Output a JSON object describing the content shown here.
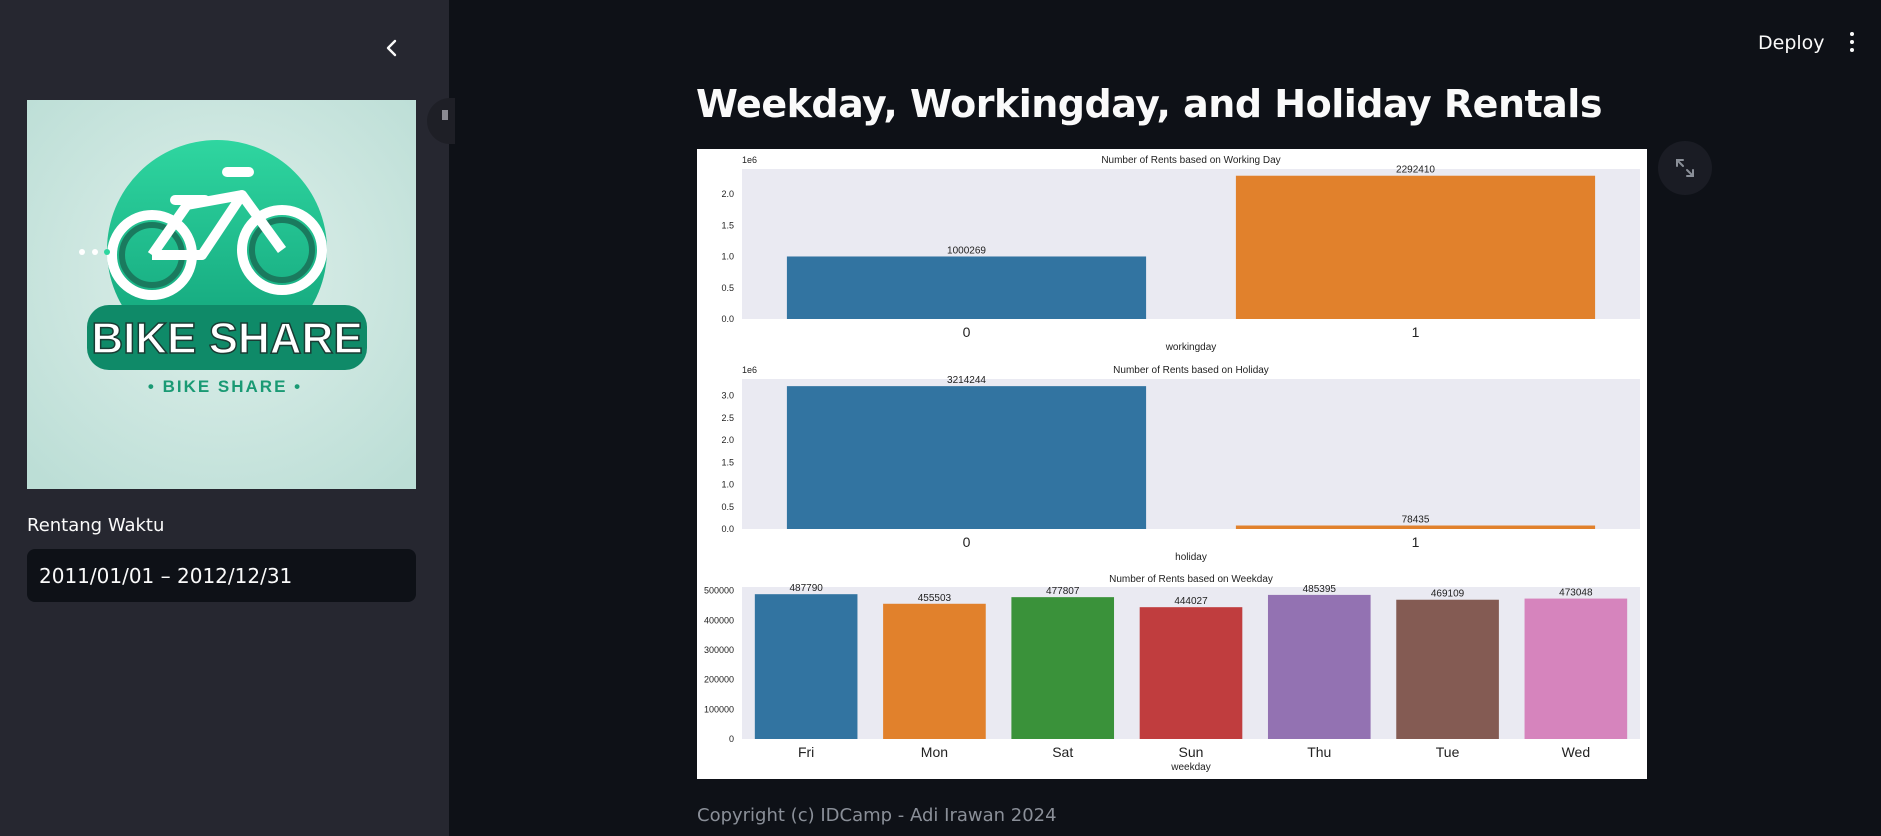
{
  "header": {
    "deploy_label": "Deploy"
  },
  "sidebar": {
    "logo_text": "BIKE SHARE",
    "logo_subtext": "• BIKE SHARE •",
    "date_label": "Rentang Waktu",
    "date_value": "2011/01/01 – 2012/12/31"
  },
  "main": {
    "title": "Weekday, Workingday, and Holiday Rentals",
    "footer": "Copyright (c) IDCamp - Adi Irawan 2024"
  },
  "colors": {
    "blue": "#3274a1",
    "orange": "#e1812c",
    "green": "#3a923a",
    "red": "#c03d3e",
    "purple": "#9372b2",
    "brown": "#845b53",
    "pink": "#d684bd",
    "plot_bg": "#eaeaf2"
  },
  "chart_data": [
    {
      "type": "bar",
      "title": "Number of Rents based on Working Day",
      "xlabel": "workingday",
      "ylabel": "",
      "scale_label": "1e6",
      "categories": [
        "0",
        "1"
      ],
      "values": [
        1000269,
        2292410
      ],
      "data_labels": [
        "1000269",
        "2292410"
      ],
      "ylim": [
        0,
        2400000
      ],
      "yticks": [
        0,
        500000,
        1000000,
        1500000,
        2000000
      ],
      "ytick_labels": [
        "0.0",
        "0.5",
        "1.0",
        "1.5",
        "2.0"
      ],
      "bar_colors": [
        "#3274a1",
        "#e1812c"
      ],
      "grid": false
    },
    {
      "type": "bar",
      "title": "Number of Rents based on Holiday",
      "xlabel": "holiday",
      "ylabel": "",
      "scale_label": "1e6",
      "categories": [
        "0",
        "1"
      ],
      "values": [
        3214244,
        78435
      ],
      "data_labels": [
        "3214244",
        "78435"
      ],
      "ylim": [
        0,
        3375000
      ],
      "yticks": [
        0,
        500000,
        1000000,
        1500000,
        2000000,
        2500000,
        3000000
      ],
      "ytick_labels": [
        "0.0",
        "0.5",
        "1.0",
        "1.5",
        "2.0",
        "2.5",
        "3.0"
      ],
      "bar_colors": [
        "#3274a1",
        "#e1812c"
      ],
      "grid": false
    },
    {
      "type": "bar",
      "title": "Number of Rents based on Weekday",
      "xlabel": "weekday",
      "ylabel": "",
      "scale_label": "",
      "categories": [
        "Fri",
        "Mon",
        "Sat",
        "Sun",
        "Thu",
        "Tue",
        "Wed"
      ],
      "values": [
        487790,
        455503,
        477807,
        444027,
        485395,
        469109,
        473048
      ],
      "data_labels": [
        "487790",
        "455503",
        "477807",
        "444027",
        "485395",
        "469109",
        "473048"
      ],
      "ylim": [
        0,
        512000
      ],
      "yticks": [
        0,
        100000,
        200000,
        300000,
        400000,
        500000
      ],
      "ytick_labels": [
        "0",
        "100000",
        "200000",
        "300000",
        "400000",
        "500000"
      ],
      "bar_colors": [
        "#3274a1",
        "#e1812c",
        "#3a923a",
        "#c03d3e",
        "#9372b2",
        "#845b53",
        "#d684bd"
      ],
      "grid": false
    }
  ]
}
